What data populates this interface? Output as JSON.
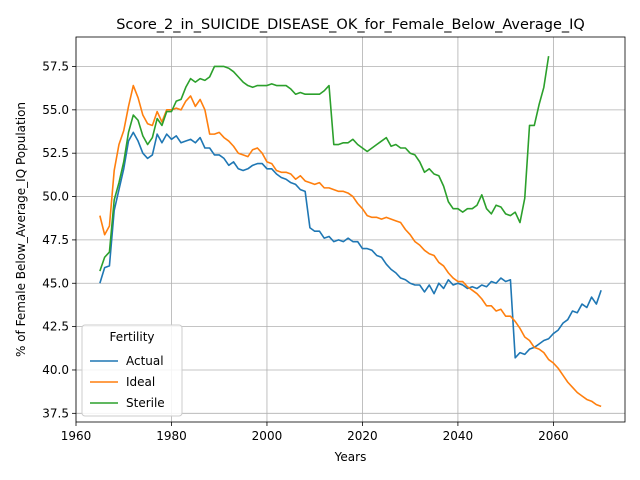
{
  "chart_data": {
    "type": "line",
    "title": "Score_2_in_SUICIDE_DISEASE_OK_for_Female_Below_Average_IQ",
    "xlabel": "Years",
    "ylabel": "% of Female Below_Average_IQ Population",
    "xlim": [
      1960,
      2075
    ],
    "ylim": [
      37.0,
      59.2
    ],
    "xticks": [
      1960,
      1980,
      2000,
      2020,
      2040,
      2060
    ],
    "yticks": [
      37.5,
      40.0,
      42.5,
      45.0,
      47.5,
      50.0,
      52.5,
      55.0,
      57.5
    ],
    "ytick_labels": [
      "37.5",
      "40.0",
      "42.5",
      "45.0",
      "47.5",
      "50.0",
      "52.5",
      "55.0",
      "57.5"
    ],
    "grid": true,
    "legend": {
      "title": "Fertility",
      "placement": "lower-left"
    },
    "series": [
      {
        "name": "Actual",
        "color": "#1f77b4",
        "points": [
          [
            1965,
            45.0
          ],
          [
            1966,
            45.9
          ],
          [
            1967,
            46.0
          ],
          [
            1968,
            49.2
          ],
          [
            1969,
            50.4
          ],
          [
            1970,
            51.6
          ],
          [
            1971,
            53.2
          ],
          [
            1972,
            53.7
          ],
          [
            1973,
            53.2
          ],
          [
            1974,
            52.5
          ],
          [
            1975,
            52.2
          ],
          [
            1976,
            52.4
          ],
          [
            1977,
            53.6
          ],
          [
            1978,
            53.1
          ],
          [
            1979,
            53.6
          ],
          [
            1980,
            53.3
          ],
          [
            1981,
            53.5
          ],
          [
            1982,
            53.1
          ],
          [
            1983,
            53.2
          ],
          [
            1984,
            53.3
          ],
          [
            1985,
            53.1
          ],
          [
            1986,
            53.4
          ],
          [
            1987,
            52.8
          ],
          [
            1988,
            52.8
          ],
          [
            1989,
            52.4
          ],
          [
            1990,
            52.4
          ],
          [
            1991,
            52.2
          ],
          [
            1992,
            51.8
          ],
          [
            1993,
            52.0
          ],
          [
            1994,
            51.6
          ],
          [
            1995,
            51.5
          ],
          [
            1996,
            51.6
          ],
          [
            1997,
            51.8
          ],
          [
            1998,
            51.9
          ],
          [
            1999,
            51.9
          ],
          [
            2000,
            51.6
          ],
          [
            2001,
            51.6
          ],
          [
            2002,
            51.3
          ],
          [
            2003,
            51.1
          ],
          [
            2004,
            51.0
          ],
          [
            2005,
            50.8
          ],
          [
            2006,
            50.7
          ],
          [
            2007,
            50.4
          ],
          [
            2008,
            50.3
          ],
          [
            2009,
            48.2
          ],
          [
            2010,
            48.0
          ],
          [
            2011,
            48.0
          ],
          [
            2012,
            47.6
          ],
          [
            2013,
            47.7
          ],
          [
            2014,
            47.4
          ],
          [
            2015,
            47.5
          ],
          [
            2016,
            47.4
          ],
          [
            2017,
            47.6
          ],
          [
            2018,
            47.4
          ],
          [
            2019,
            47.4
          ],
          [
            2020,
            47.0
          ],
          [
            2021,
            47.0
          ],
          [
            2022,
            46.9
          ],
          [
            2023,
            46.6
          ],
          [
            2024,
            46.5
          ],
          [
            2025,
            46.1
          ],
          [
            2026,
            45.8
          ],
          [
            2027,
            45.6
          ],
          [
            2028,
            45.3
          ],
          [
            2029,
            45.2
          ],
          [
            2030,
            45.0
          ],
          [
            2031,
            44.9
          ],
          [
            2032,
            44.9
          ],
          [
            2033,
            44.5
          ],
          [
            2034,
            44.9
          ],
          [
            2035,
            44.4
          ],
          [
            2036,
            45.0
          ],
          [
            2037,
            44.7
          ],
          [
            2038,
            45.2
          ],
          [
            2039,
            44.9
          ],
          [
            2040,
            45.0
          ],
          [
            2041,
            44.9
          ],
          [
            2042,
            44.7
          ],
          [
            2043,
            44.8
          ],
          [
            2044,
            44.7
          ],
          [
            2045,
            44.9
          ],
          [
            2046,
            44.8
          ],
          [
            2047,
            45.1
          ],
          [
            2048,
            45.0
          ],
          [
            2049,
            45.3
          ],
          [
            2050,
            45.1
          ],
          [
            2051,
            45.2
          ],
          [
            2052,
            40.7
          ],
          [
            2053,
            41.0
          ],
          [
            2054,
            40.9
          ],
          [
            2055,
            41.2
          ],
          [
            2056,
            41.3
          ],
          [
            2057,
            41.5
          ],
          [
            2058,
            41.7
          ],
          [
            2059,
            41.8
          ],
          [
            2060,
            42.1
          ],
          [
            2061,
            42.3
          ],
          [
            2062,
            42.7
          ],
          [
            2063,
            42.9
          ],
          [
            2064,
            43.4
          ],
          [
            2065,
            43.3
          ],
          [
            2066,
            43.8
          ],
          [
            2067,
            43.6
          ],
          [
            2068,
            44.2
          ],
          [
            2069,
            43.8
          ],
          [
            2070,
            44.6
          ]
        ]
      },
      {
        "name": "Ideal",
        "color": "#ff7f0e",
        "points": [
          [
            1965,
            48.9
          ],
          [
            1966,
            47.8
          ],
          [
            1967,
            48.3
          ],
          [
            1968,
            51.5
          ],
          [
            1969,
            53.0
          ],
          [
            1970,
            53.8
          ],
          [
            1971,
            55.2
          ],
          [
            1972,
            56.4
          ],
          [
            1973,
            55.7
          ],
          [
            1974,
            54.7
          ],
          [
            1975,
            54.2
          ],
          [
            1976,
            54.1
          ],
          [
            1977,
            54.9
          ],
          [
            1978,
            54.3
          ],
          [
            1979,
            55.0
          ],
          [
            1980,
            55.0
          ],
          [
            1981,
            55.1
          ],
          [
            1982,
            55.0
          ],
          [
            1983,
            55.5
          ],
          [
            1984,
            55.8
          ],
          [
            1985,
            55.2
          ],
          [
            1986,
            55.6
          ],
          [
            1987,
            55.0
          ],
          [
            1988,
            53.6
          ],
          [
            1989,
            53.6
          ],
          [
            1990,
            53.7
          ],
          [
            1991,
            53.4
          ],
          [
            1992,
            53.2
          ],
          [
            1993,
            52.9
          ],
          [
            1994,
            52.5
          ],
          [
            1995,
            52.4
          ],
          [
            1996,
            52.3
          ],
          [
            1997,
            52.7
          ],
          [
            1998,
            52.8
          ],
          [
            1999,
            52.5
          ],
          [
            2000,
            52.0
          ],
          [
            2001,
            51.9
          ],
          [
            2002,
            51.5
          ],
          [
            2003,
            51.4
          ],
          [
            2004,
            51.4
          ],
          [
            2005,
            51.3
          ],
          [
            2006,
            51.0
          ],
          [
            2007,
            51.2
          ],
          [
            2008,
            50.9
          ],
          [
            2009,
            50.8
          ],
          [
            2010,
            50.7
          ],
          [
            2011,
            50.8
          ],
          [
            2012,
            50.5
          ],
          [
            2013,
            50.5
          ],
          [
            2014,
            50.4
          ],
          [
            2015,
            50.3
          ],
          [
            2016,
            50.3
          ],
          [
            2017,
            50.2
          ],
          [
            2018,
            50.0
          ],
          [
            2019,
            49.6
          ],
          [
            2020,
            49.3
          ],
          [
            2021,
            48.9
          ],
          [
            2022,
            48.8
          ],
          [
            2023,
            48.8
          ],
          [
            2024,
            48.7
          ],
          [
            2025,
            48.8
          ],
          [
            2026,
            48.7
          ],
          [
            2027,
            48.6
          ],
          [
            2028,
            48.5
          ],
          [
            2029,
            48.1
          ],
          [
            2030,
            47.8
          ],
          [
            2031,
            47.4
          ],
          [
            2032,
            47.2
          ],
          [
            2033,
            46.9
          ],
          [
            2034,
            46.7
          ],
          [
            2035,
            46.6
          ],
          [
            2036,
            46.2
          ],
          [
            2037,
            46.0
          ],
          [
            2038,
            45.6
          ],
          [
            2039,
            45.3
          ],
          [
            2040,
            45.1
          ],
          [
            2041,
            45.1
          ],
          [
            2042,
            44.8
          ],
          [
            2043,
            44.6
          ],
          [
            2044,
            44.4
          ],
          [
            2045,
            44.1
          ],
          [
            2046,
            43.7
          ],
          [
            2047,
            43.7
          ],
          [
            2048,
            43.4
          ],
          [
            2049,
            43.5
          ],
          [
            2050,
            43.1
          ],
          [
            2051,
            43.1
          ],
          [
            2052,
            42.8
          ],
          [
            2053,
            42.4
          ],
          [
            2054,
            41.9
          ],
          [
            2055,
            41.7
          ],
          [
            2056,
            41.3
          ],
          [
            2057,
            41.2
          ],
          [
            2058,
            41.0
          ],
          [
            2059,
            40.6
          ],
          [
            2060,
            40.4
          ],
          [
            2061,
            40.1
          ],
          [
            2062,
            39.7
          ],
          [
            2063,
            39.3
          ],
          [
            2064,
            39.0
          ],
          [
            2065,
            38.7
          ],
          [
            2066,
            38.5
          ],
          [
            2067,
            38.3
          ],
          [
            2068,
            38.2
          ],
          [
            2069,
            38.0
          ],
          [
            2070,
            37.9
          ]
        ]
      },
      {
        "name": "Sterile",
        "color": "#2ca02c",
        "points": [
          [
            1965,
            45.7
          ],
          [
            1966,
            46.5
          ],
          [
            1967,
            46.8
          ],
          [
            1968,
            49.8
          ],
          [
            1969,
            50.8
          ],
          [
            1970,
            52.0
          ],
          [
            1971,
            53.7
          ],
          [
            1972,
            54.7
          ],
          [
            1973,
            54.4
          ],
          [
            1974,
            53.5
          ],
          [
            1975,
            53.0
          ],
          [
            1976,
            53.4
          ],
          [
            1977,
            54.5
          ],
          [
            1978,
            54.1
          ],
          [
            1979,
            54.9
          ],
          [
            1980,
            54.9
          ],
          [
            1981,
            55.5
          ],
          [
            1982,
            55.6
          ],
          [
            1983,
            56.3
          ],
          [
            1984,
            56.8
          ],
          [
            1985,
            56.6
          ],
          [
            1986,
            56.8
          ],
          [
            1987,
            56.7
          ],
          [
            1988,
            56.9
          ],
          [
            1989,
            57.5
          ],
          [
            1990,
            57.5
          ],
          [
            1991,
            57.5
          ],
          [
            1992,
            57.4
          ],
          [
            1993,
            57.2
          ],
          [
            1994,
            56.9
          ],
          [
            1995,
            56.6
          ],
          [
            1996,
            56.4
          ],
          [
            1997,
            56.3
          ],
          [
            1998,
            56.4
          ],
          [
            1999,
            56.4
          ],
          [
            2000,
            56.4
          ],
          [
            2001,
            56.5
          ],
          [
            2002,
            56.4
          ],
          [
            2003,
            56.4
          ],
          [
            2004,
            56.4
          ],
          [
            2005,
            56.2
          ],
          [
            2006,
            55.9
          ],
          [
            2007,
            56.0
          ],
          [
            2008,
            55.9
          ],
          [
            2009,
            55.9
          ],
          [
            2010,
            55.9
          ],
          [
            2011,
            55.9
          ],
          [
            2012,
            56.1
          ],
          [
            2013,
            56.4
          ],
          [
            2014,
            53.0
          ],
          [
            2015,
            53.0
          ],
          [
            2016,
            53.1
          ],
          [
            2017,
            53.1
          ],
          [
            2018,
            53.3
          ],
          [
            2019,
            53.0
          ],
          [
            2020,
            52.8
          ],
          [
            2021,
            52.6
          ],
          [
            2022,
            52.8
          ],
          [
            2023,
            53.0
          ],
          [
            2024,
            53.2
          ],
          [
            2025,
            53.4
          ],
          [
            2026,
            52.9
          ],
          [
            2027,
            53.0
          ],
          [
            2028,
            52.8
          ],
          [
            2029,
            52.8
          ],
          [
            2030,
            52.5
          ],
          [
            2031,
            52.4
          ],
          [
            2032,
            52.0
          ],
          [
            2033,
            51.4
          ],
          [
            2034,
            51.6
          ],
          [
            2035,
            51.3
          ],
          [
            2036,
            51.2
          ],
          [
            2037,
            50.6
          ],
          [
            2038,
            49.7
          ],
          [
            2039,
            49.3
          ],
          [
            2040,
            49.3
          ],
          [
            2041,
            49.1
          ],
          [
            2042,
            49.3
          ],
          [
            2043,
            49.3
          ],
          [
            2044,
            49.5
          ],
          [
            2045,
            50.1
          ],
          [
            2046,
            49.3
          ],
          [
            2047,
            49.0
          ],
          [
            2048,
            49.5
          ],
          [
            2049,
            49.4
          ],
          [
            2050,
            49.0
          ],
          [
            2051,
            48.9
          ],
          [
            2052,
            49.1
          ],
          [
            2053,
            48.5
          ],
          [
            2054,
            49.9
          ],
          [
            2055,
            54.1
          ],
          [
            2056,
            54.1
          ],
          [
            2057,
            55.3
          ],
          [
            2058,
            56.3
          ],
          [
            2059,
            58.1
          ]
        ]
      }
    ]
  }
}
